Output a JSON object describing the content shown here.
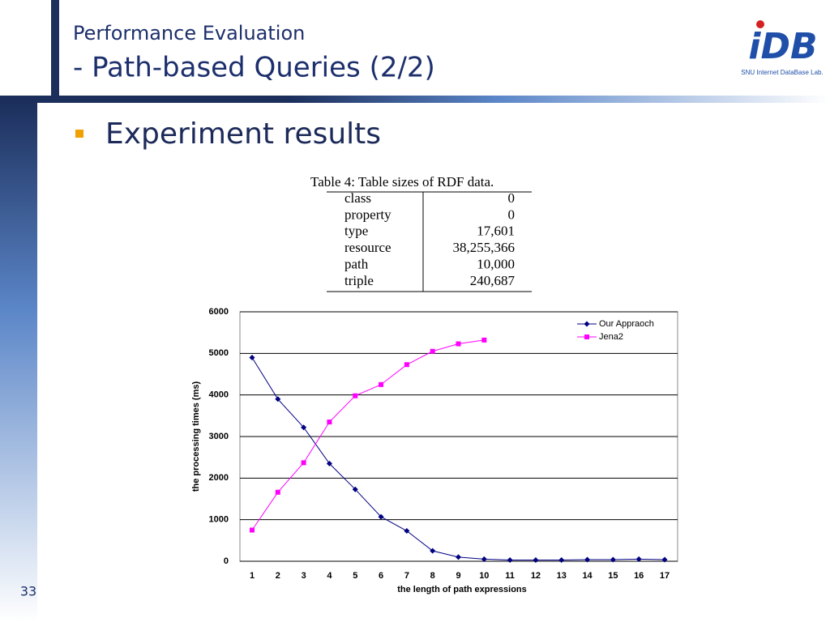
{
  "header": {
    "title": "Performance Evaluation",
    "subtitle": "- Path-based Queries (2/2)"
  },
  "logo": {
    "mark": "iDB",
    "caption": "SNU Internet DataBase Lab."
  },
  "bullet": "Experiment results",
  "table": {
    "caption": "Table 4: Table sizes of RDF data.",
    "rows": [
      [
        "class",
        "0"
      ],
      [
        "property",
        "0"
      ],
      [
        "type",
        "17,601"
      ],
      [
        "resource",
        "38,255,366"
      ],
      [
        "path",
        "10,000"
      ],
      [
        "triple",
        "240,687"
      ]
    ]
  },
  "chart_data": {
    "type": "line",
    "xlabel": "the length of path expressions",
    "ylabel": "the processing times (ms)",
    "categories": [
      "1",
      "2",
      "3",
      "4",
      "5",
      "6",
      "7",
      "8",
      "9",
      "10",
      "11",
      "12",
      "13",
      "14",
      "15",
      "16",
      "17"
    ],
    "series": [
      {
        "name": "Our Appraoch",
        "color": "#000080",
        "marker": "diamond",
        "values": [
          4900,
          3900,
          3220,
          2350,
          1730,
          1070,
          730,
          250,
          100,
          50,
          30,
          30,
          30,
          40,
          40,
          50,
          40
        ]
      },
      {
        "name": "Jena2",
        "color": "#ff00ff",
        "marker": "square",
        "values": [
          750,
          1660,
          2370,
          3350,
          3980,
          4250,
          4730,
          5050,
          5230,
          5320,
          null,
          null,
          null,
          null,
          null,
          null,
          null
        ]
      }
    ],
    "ylim": [
      0,
      6000
    ],
    "yticks": [
      0,
      1000,
      2000,
      3000,
      4000,
      5000,
      6000
    ],
    "grid": true,
    "legend": "top-right"
  },
  "page_number": "33"
}
